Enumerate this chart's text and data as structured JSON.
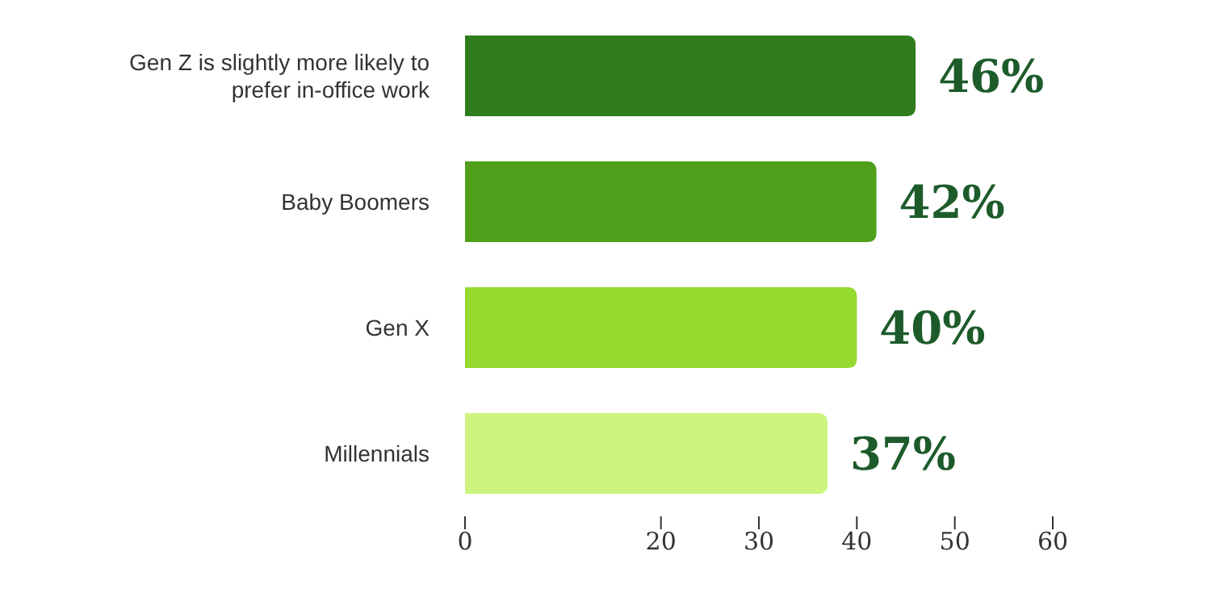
{
  "chart_data": {
    "type": "bar",
    "orientation": "horizontal",
    "categories": [
      "Gen Z is slightly more likely to prefer in-office work",
      "Baby Boomers",
      "Gen X",
      "Millennials"
    ],
    "values": [
      46,
      42,
      40,
      37
    ],
    "colors": [
      "#2f7d1e",
      "#4f9f1a",
      "#93d92e",
      "#cdf47f"
    ],
    "value_labels": [
      "46%",
      "42%",
      "40%",
      "37%"
    ],
    "xlim": [
      0,
      60
    ],
    "xticks": [
      0,
      20,
      30,
      40,
      50,
      60
    ],
    "grid": false,
    "legend": false
  }
}
